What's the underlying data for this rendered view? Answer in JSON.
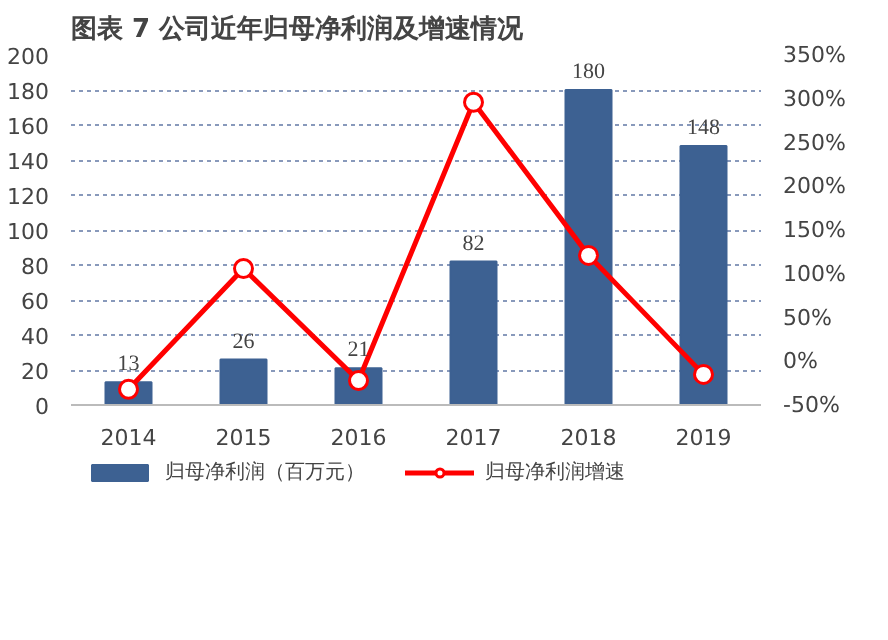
{
  "chart_data": {
    "type": "bar",
    "title": "图表 7 公司近年归母净利润及增速情况",
    "categories": [
      "2014",
      "2015",
      "2016",
      "2017",
      "2018",
      "2019"
    ],
    "series": [
      {
        "name": "归母净利润（百万元）",
        "color": "#3d6192",
        "values": [
          13,
          26,
          21,
          82,
          180,
          148
        ]
      },
      {
        "name": "归母净利润增速",
        "type": "line",
        "axis": "y2",
        "color": "#ff0000",
        "marker": "circle",
        "values": [
          -32,
          106,
          -22,
          296,
          121,
          -15
        ]
      }
    ],
    "ylim": [
      0,
      200
    ],
    "yticks": [
      0,
      20,
      40,
      60,
      80,
      100,
      120,
      140,
      160,
      180,
      200
    ],
    "y2lim": [
      -50,
      350
    ],
    "y2ticks": [
      {
        "value": -50,
        "label": "-50%"
      },
      {
        "value": 0,
        "label": "0%"
      },
      {
        "value": 50,
        "label": "50%"
      },
      {
        "value": 100,
        "label": "100%"
      },
      {
        "value": 150,
        "label": "150%"
      },
      {
        "value": 200,
        "label": "200%"
      },
      {
        "value": 250,
        "label": "250%"
      },
      {
        "value": 300,
        "label": "300%"
      },
      {
        "value": 350,
        "label": "350%"
      }
    ],
    "value_labels": [
      "13",
      "26",
      "21",
      "82",
      "180",
      "148"
    ],
    "grid": "y",
    "legend": "bottom"
  }
}
